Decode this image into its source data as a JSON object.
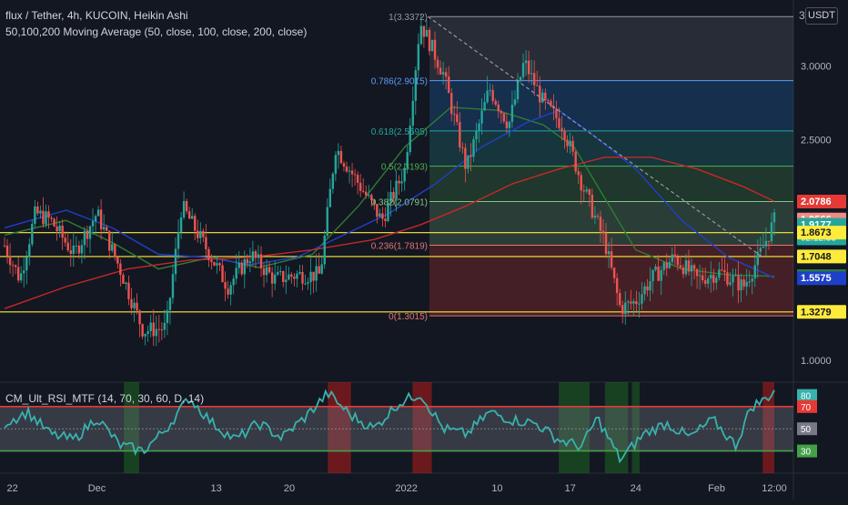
{
  "header": {
    "title": "flux / Tether, 4h, KUCOIN, Heikin Ashi",
    "ma_legend": "50,100,200 Moving Average (50, close, 100, close, 200, close)",
    "indicator_legend": "CM_Ult_RSI_MTF (14, 70, 30, 60, D, 14)",
    "currency_badge": "USDT",
    "axis_top_partial": "3"
  },
  "colors": {
    "background": "#131722",
    "candle_up": "#26a69a",
    "candle_down": "#ef5350",
    "ma50": "#2e7d32",
    "ma100": "#1e40c8",
    "ma200": "#c62828",
    "rsi_line": "#38b2ac",
    "band_red": "#e53935",
    "band_green": "#43a047",
    "hline_yellow": "#ffeb3b"
  },
  "chart_data": [
    {
      "type": "candlestick",
      "title": "flux / Tether, 4h, KUCOIN, Heikin Ashi",
      "y_axis_labels": [
        "3.0000",
        "2.5000",
        "1.0000"
      ],
      "ylim": [
        0.85,
        3.45
      ],
      "x_tick_labels": [
        "22",
        "Dec",
        "13",
        "20",
        "2022",
        "10",
        "17",
        "24",
        "Feb",
        "12:00"
      ],
      "price_path": [
        {
          "t": 0,
          "p": 1.78
        },
        {
          "t": 0.02,
          "p": 1.55
        },
        {
          "t": 0.04,
          "p": 2.0
        },
        {
          "t": 0.06,
          "p": 1.95
        },
        {
          "t": 0.09,
          "p": 1.72
        },
        {
          "t": 0.12,
          "p": 2.0
        },
        {
          "t": 0.15,
          "p": 1.62
        },
        {
          "t": 0.18,
          "p": 1.2
        },
        {
          "t": 0.21,
          "p": 1.22
        },
        {
          "t": 0.23,
          "p": 2.05
        },
        {
          "t": 0.26,
          "p": 1.78
        },
        {
          "t": 0.29,
          "p": 1.5
        },
        {
          "t": 0.32,
          "p": 1.72
        },
        {
          "t": 0.35,
          "p": 1.55
        },
        {
          "t": 0.38,
          "p": 1.58
        },
        {
          "t": 0.41,
          "p": 1.58
        },
        {
          "t": 0.43,
          "p": 2.45
        },
        {
          "t": 0.46,
          "p": 2.2
        },
        {
          "t": 0.49,
          "p": 1.95
        },
        {
          "t": 0.52,
          "p": 2.3
        },
        {
          "t": 0.54,
          "p": 3.3
        },
        {
          "t": 0.57,
          "p": 2.95
        },
        {
          "t": 0.6,
          "p": 2.3
        },
        {
          "t": 0.63,
          "p": 2.85
        },
        {
          "t": 0.655,
          "p": 2.6
        },
        {
          "t": 0.675,
          "p": 3.03
        },
        {
          "t": 0.7,
          "p": 2.75
        },
        {
          "t": 0.725,
          "p": 2.6
        },
        {
          "t": 0.75,
          "p": 2.2
        },
        {
          "t": 0.78,
          "p": 1.8
        },
        {
          "t": 0.8,
          "p": 1.35
        },
        {
          "t": 0.82,
          "p": 1.4
        },
        {
          "t": 0.84,
          "p": 1.55
        },
        {
          "t": 0.87,
          "p": 1.7
        },
        {
          "t": 0.9,
          "p": 1.55
        },
        {
          "t": 0.93,
          "p": 1.6
        },
        {
          "t": 0.96,
          "p": 1.5
        },
        {
          "t": 0.98,
          "p": 1.7
        },
        {
          "t": 1,
          "p": 1.95
        }
      ],
      "fibonacci": {
        "levels": [
          {
            "label": "1(3.3372)",
            "value": 3.3372,
            "fill": "#787b86"
          },
          {
            "label": "0.786(2.9015)",
            "value": 2.9015,
            "fill": "#1e88e5"
          },
          {
            "label": "0.618(2.5595)",
            "value": 2.5595,
            "fill": "#26a69a"
          },
          {
            "label": "0.5(2.3193)",
            "value": 2.3193,
            "fill": "#4caf50"
          },
          {
            "label": "0.382(2.0791)",
            "value": 2.0791,
            "fill": "#81c784"
          },
          {
            "label": "0.236(1.7819)",
            "value": 1.7819,
            "fill": "#f44336"
          },
          {
            "label": "0(1.3015)",
            "value": 1.3015,
            "fill": "#f44336"
          }
        ],
        "line_colors": [
          "#9598a1",
          "#5b9cf6",
          "#26a69a",
          "#4caf50",
          "#81c784",
          "#e57373",
          "#e57373"
        ]
      },
      "horizontal_lines": [
        {
          "value": 1.8673,
          "color": "#ffeb3b"
        },
        {
          "value": 1.7048,
          "color": "#ffeb3b"
        },
        {
          "value": 1.3279,
          "color": "#ffeb3b"
        }
      ],
      "price_tags": [
        {
          "label": "2.0786",
          "value": 2.0786,
          "bg": "#e53935",
          "fg": "#ffffff"
        },
        {
          "label": "1.9566",
          "value": 1.9566,
          "bg": "#f28b82",
          "fg": "#ffffff"
        },
        {
          "label": "1.9177",
          "value": 1.9177,
          "bg": "#26a69a",
          "fg": "#ffffff",
          "sub": "02:12:33"
        },
        {
          "label": "1.8673",
          "value": 1.8673,
          "bg": "#ffeb3b",
          "fg": "#131722"
        },
        {
          "label": "1.7048",
          "value": 1.7048,
          "bg": "#ffeb3b",
          "fg": "#131722"
        },
        {
          "label": "1.5715",
          "value": 1.5715,
          "bg": "#2e7d32",
          "fg": "#ffffff"
        },
        {
          "label": "1.5575",
          "value": 1.5575,
          "bg": "#1e40c8",
          "fg": "#ffffff"
        },
        {
          "label": "1.3279",
          "value": 1.3279,
          "bg": "#ffeb3b",
          "fg": "#131722"
        }
      ],
      "moving_averages": [
        {
          "period": 50,
          "color": "#2e7d32",
          "points": [
            [
              0,
              1.85
            ],
            [
              0.08,
              1.95
            ],
            [
              0.14,
              1.8
            ],
            [
              0.2,
              1.62
            ],
            [
              0.27,
              1.7
            ],
            [
              0.33,
              1.63
            ],
            [
              0.4,
              1.72
            ],
            [
              0.46,
              2.05
            ],
            [
              0.52,
              2.45
            ],
            [
              0.58,
              2.72
            ],
            [
              0.64,
              2.7
            ],
            [
              0.7,
              2.6
            ],
            [
              0.74,
              2.45
            ],
            [
              0.78,
              2.1
            ],
            [
              0.82,
              1.75
            ],
            [
              0.88,
              1.62
            ],
            [
              0.94,
              1.58
            ],
            [
              1,
              1.57
            ]
          ]
        },
        {
          "period": 100,
          "color": "#1e40c8",
          "points": [
            [
              0,
              1.9
            ],
            [
              0.08,
              2.02
            ],
            [
              0.14,
              1.9
            ],
            [
              0.2,
              1.72
            ],
            [
              0.26,
              1.7
            ],
            [
              0.32,
              1.65
            ],
            [
              0.38,
              1.7
            ],
            [
              0.44,
              1.85
            ],
            [
              0.5,
              2.0
            ],
            [
              0.56,
              2.2
            ],
            [
              0.62,
              2.45
            ],
            [
              0.68,
              2.62
            ],
            [
              0.72,
              2.7
            ],
            [
              0.76,
              2.55
            ],
            [
              0.82,
              2.3
            ],
            [
              0.88,
              1.95
            ],
            [
              0.94,
              1.7
            ],
            [
              1,
              1.56
            ]
          ]
        },
        {
          "period": 200,
          "color": "#c62828",
          "points": [
            [
              0,
              1.35
            ],
            [
              0.08,
              1.5
            ],
            [
              0.16,
              1.62
            ],
            [
              0.24,
              1.68
            ],
            [
              0.32,
              1.7
            ],
            [
              0.4,
              1.75
            ],
            [
              0.48,
              1.82
            ],
            [
              0.54,
              1.92
            ],
            [
              0.6,
              2.05
            ],
            [
              0.66,
              2.2
            ],
            [
              0.72,
              2.3
            ],
            [
              0.78,
              2.38
            ],
            [
              0.84,
              2.38
            ],
            [
              0.9,
              2.3
            ],
            [
              0.96,
              2.18
            ],
            [
              1,
              2.08
            ]
          ]
        }
      ],
      "trendline": {
        "from": [
          0.55,
          3.3372
        ],
        "to": [
          0.985,
          1.7
        ],
        "color": "#9598a1"
      }
    },
    {
      "type": "line",
      "title": "CM_Ult_RSI_MTF (14, 70, 30, 60, D, 14)",
      "levels": [
        {
          "label": "80",
          "value": 80,
          "bg": "#38b2ac"
        },
        {
          "label": "70",
          "value": 70,
          "bg": "#e53935"
        },
        {
          "label": "50",
          "value": 50,
          "bg": "#787b86"
        },
        {
          "label": "30",
          "value": 30,
          "bg": "#43a047"
        }
      ],
      "bands": [
        70,
        30
      ],
      "ylim": [
        10,
        92
      ],
      "rsi_path": [
        {
          "t": 0,
          "p": 55
        },
        {
          "t": 0.03,
          "p": 65
        },
        {
          "t": 0.06,
          "p": 45
        },
        {
          "t": 0.09,
          "p": 40
        },
        {
          "t": 0.12,
          "p": 60
        },
        {
          "t": 0.15,
          "p": 35
        },
        {
          "t": 0.18,
          "p": 30
        },
        {
          "t": 0.21,
          "p": 50
        },
        {
          "t": 0.24,
          "p": 78
        },
        {
          "t": 0.27,
          "p": 55
        },
        {
          "t": 0.3,
          "p": 40
        },
        {
          "t": 0.33,
          "p": 55
        },
        {
          "t": 0.36,
          "p": 42
        },
        {
          "t": 0.39,
          "p": 60
        },
        {
          "t": 0.42,
          "p": 82
        },
        {
          "t": 0.45,
          "p": 62
        },
        {
          "t": 0.48,
          "p": 50
        },
        {
          "t": 0.51,
          "p": 72
        },
        {
          "t": 0.54,
          "p": 82
        },
        {
          "t": 0.57,
          "p": 50
        },
        {
          "t": 0.6,
          "p": 45
        },
        {
          "t": 0.63,
          "p": 65
        },
        {
          "t": 0.66,
          "p": 58
        },
        {
          "t": 0.69,
          "p": 55
        },
        {
          "t": 0.72,
          "p": 40
        },
        {
          "t": 0.75,
          "p": 34
        },
        {
          "t": 0.77,
          "p": 60
        },
        {
          "t": 0.8,
          "p": 22
        },
        {
          "t": 0.83,
          "p": 45
        },
        {
          "t": 0.86,
          "p": 55
        },
        {
          "t": 0.89,
          "p": 42
        },
        {
          "t": 0.92,
          "p": 58
        },
        {
          "t": 0.95,
          "p": 35
        },
        {
          "t": 0.97,
          "p": 70
        },
        {
          "t": 0.985,
          "p": 75
        },
        {
          "t": 1,
          "p": 84
        }
      ],
      "overbought_shading": [
        [
          0.42,
          0.45
        ],
        [
          0.53,
          0.555
        ],
        [
          0.985,
          1
        ]
      ],
      "oversold_shading": [
        [
          0.155,
          0.175
        ],
        [
          0.72,
          0.76
        ],
        [
          0.78,
          0.81
        ],
        [
          0.815,
          0.825
        ]
      ]
    }
  ]
}
